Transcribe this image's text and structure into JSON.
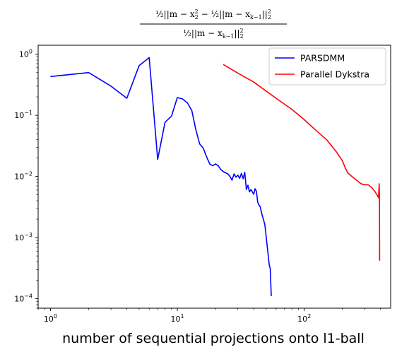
{
  "chart_data": {
    "type": "line",
    "title": {
      "numerator_a": "½||m − x",
      "numerator_a_sub": "k",
      "numerator_a_tail": "||",
      "numerator_b": " − ½||m − x",
      "numerator_b_sub": "k−1",
      "numerator_b_tail": "||",
      "norm_sub": "2",
      "norm_sup": "2",
      "denominator": "½||m − x",
      "denominator_sub": "k−1",
      "denominator_tail": "||"
    },
    "xlabel": "number of sequential projections onto l1-ball",
    "ylabel": "",
    "xscale": "log",
    "yscale": "log",
    "xlim": [
      0.8,
      480
    ],
    "ylim": [
      7e-05,
      1.4
    ],
    "grid": false,
    "legend_position": "top-right",
    "x_tick_labels": [
      {
        "value": 1,
        "base": "10",
        "exp": "0"
      },
      {
        "value": 10,
        "base": "10",
        "exp": "1"
      },
      {
        "value": 100,
        "base": "10",
        "exp": "2"
      }
    ],
    "y_tick_labels": [
      {
        "value": 0.0001,
        "base": "10",
        "exp": "−4"
      },
      {
        "value": 0.001,
        "base": "10",
        "exp": "−3"
      },
      {
        "value": 0.01,
        "base": "10",
        "exp": "−2"
      },
      {
        "value": 0.1,
        "base": "10",
        "exp": "−1"
      },
      {
        "value": 1,
        "base": "10",
        "exp": "0"
      }
    ],
    "series": [
      {
        "name": "PARSDMM",
        "color": "#0000ff",
        "points": [
          [
            1,
            0.43
          ],
          [
            2,
            0.5
          ],
          [
            3,
            0.3
          ],
          [
            4,
            0.19
          ],
          [
            5,
            0.65
          ],
          [
            6,
            0.88
          ],
          [
            7,
            0.019
          ],
          [
            8,
            0.077
          ],
          [
            9,
            0.097
          ],
          [
            10,
            0.195
          ],
          [
            11,
            0.185
          ],
          [
            12,
            0.16
          ],
          [
            13,
            0.12
          ],
          [
            14,
            0.058
          ],
          [
            15,
            0.034
          ],
          [
            16,
            0.029
          ],
          [
            17,
            0.021
          ],
          [
            18,
            0.016
          ],
          [
            19,
            0.015
          ],
          [
            20,
            0.016
          ],
          [
            21,
            0.015
          ],
          [
            22,
            0.013
          ],
          [
            23,
            0.012
          ],
          [
            24,
            0.0115
          ],
          [
            25,
            0.011
          ],
          [
            26,
            0.01
          ],
          [
            27,
            0.0087
          ],
          [
            28,
            0.011
          ],
          [
            29,
            0.0097
          ],
          [
            30,
            0.0105
          ],
          [
            31,
            0.0093
          ],
          [
            32,
            0.0112
          ],
          [
            33,
            0.0092
          ],
          [
            34,
            0.0117
          ],
          [
            35,
            0.0061
          ],
          [
            36,
            0.0072
          ],
          [
            37,
            0.0056
          ],
          [
            38,
            0.0061
          ],
          [
            39,
            0.0056
          ],
          [
            40,
            0.0051
          ],
          [
            41,
            0.0063
          ],
          [
            42,
            0.0057
          ],
          [
            43,
            0.0038
          ],
          [
            44,
            0.0034
          ],
          [
            45,
            0.0032
          ],
          [
            46,
            0.0026
          ],
          [
            47,
            0.0022
          ],
          [
            48,
            0.0019
          ],
          [
            49,
            0.0016
          ],
          [
            50,
            0.0011
          ],
          [
            51,
            0.00075
          ],
          [
            52,
            0.00052
          ],
          [
            53,
            0.00036
          ],
          [
            54,
            0.00031
          ],
          [
            55,
            0.00011
          ]
        ]
      },
      {
        "name": "Parallel Dykstra",
        "color": "#ff0000",
        "points": [
          [
            23,
            0.68
          ],
          [
            30,
            0.49
          ],
          [
            40,
            0.35
          ],
          [
            50,
            0.25
          ],
          [
            60,
            0.19
          ],
          [
            80,
            0.125
          ],
          [
            100,
            0.085
          ],
          [
            120,
            0.06
          ],
          [
            150,
            0.04
          ],
          [
            180,
            0.025
          ],
          [
            200,
            0.018
          ],
          [
            210,
            0.014
          ],
          [
            220,
            0.0115
          ],
          [
            240,
            0.0098
          ],
          [
            260,
            0.0086
          ],
          [
            280,
            0.0076
          ],
          [
            300,
            0.0073
          ],
          [
            320,
            0.0073
          ],
          [
            340,
            0.0066
          ],
          [
            360,
            0.0057
          ],
          [
            375,
            0.005
          ],
          [
            385,
            0.0045
          ],
          [
            390,
            0.0076
          ],
          [
            392,
            0.0044
          ],
          [
            393,
            0.00042
          ]
        ]
      }
    ]
  }
}
